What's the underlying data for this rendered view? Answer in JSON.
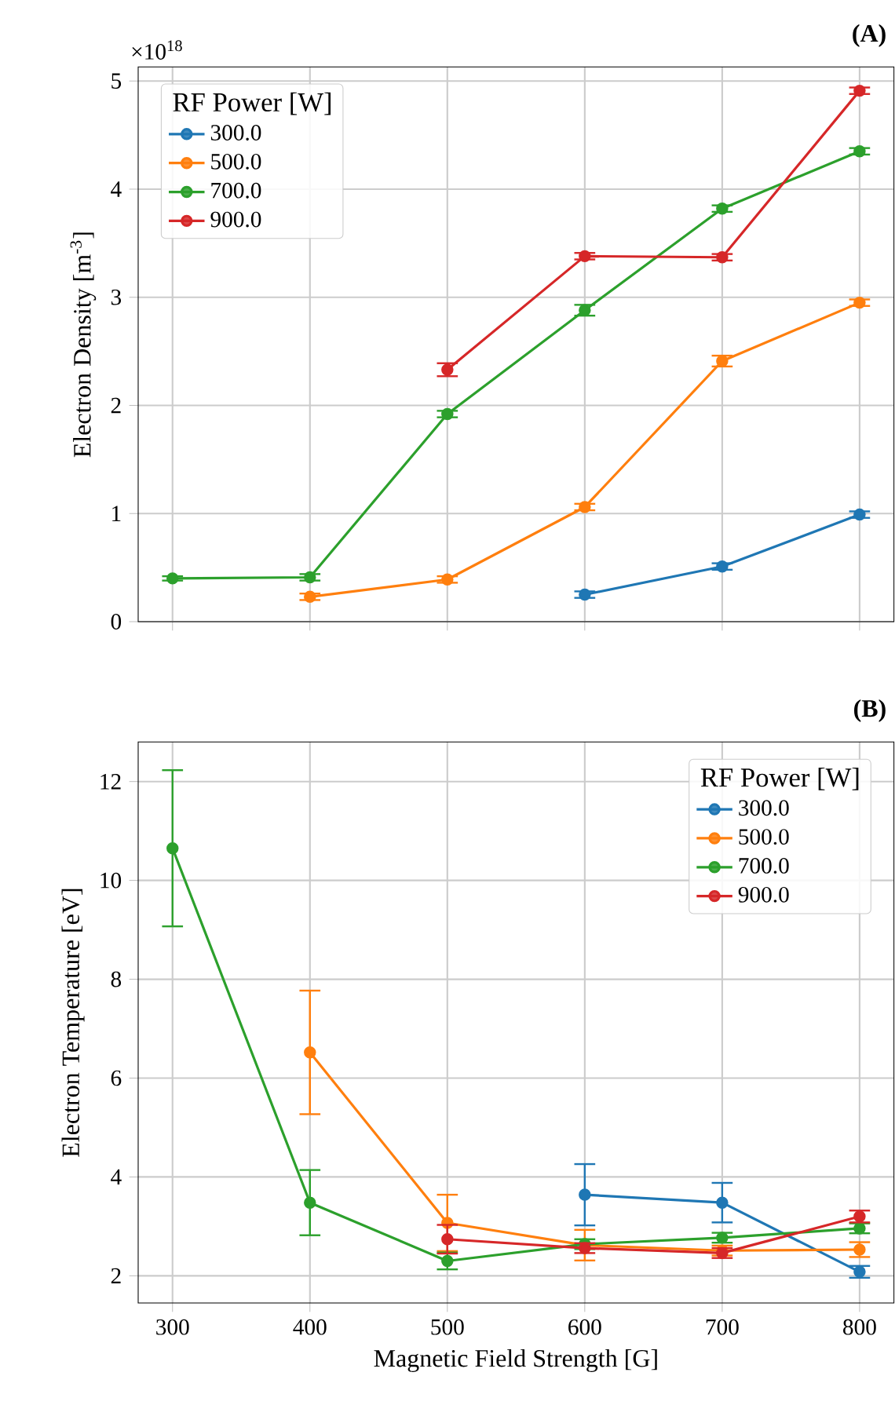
{
  "chart_data": [
    {
      "type": "line",
      "title": "(A)",
      "ylabel": "Electron Density [m$^{-3}$]",
      "annotations": [
        "×10$^{18}$"
      ],
      "legend_title": "RF Power [W]",
      "legend": "top left",
      "grid": true,
      "marker": "circle",
      "tick_labels": "y",
      "xlim": [
        275,
        825
      ],
      "xticks": [
        300,
        400,
        500,
        600,
        700,
        800
      ],
      "ylim": [
        0,
        5.13
      ],
      "yticks": [
        0,
        1,
        2,
        3,
        4,
        5
      ],
      "series": [
        {
          "name": "300.0",
          "color": "#1f77b4",
          "x": [
            600,
            700,
            800
          ],
          "values": [
            0.25,
            0.51,
            0.99
          ],
          "errors": [
            0.03,
            0.03,
            0.03
          ]
        },
        {
          "name": "500.0",
          "color": "#ff7f0e",
          "x": [
            400,
            500,
            600,
            700,
            800
          ],
          "values": [
            0.23,
            0.39,
            1.06,
            2.41,
            2.95
          ],
          "errors": [
            0.03,
            0.03,
            0.03,
            0.05,
            0.03
          ]
        },
        {
          "name": "700.0",
          "color": "#2ca02c",
          "x": [
            300,
            400,
            500,
            600,
            700,
            800
          ],
          "values": [
            0.4,
            0.41,
            1.92,
            2.88,
            3.82,
            4.35
          ],
          "errors": [
            0.02,
            0.03,
            0.03,
            0.05,
            0.03,
            0.03
          ]
        },
        {
          "name": "900.0",
          "color": "#d62728",
          "x": [
            500,
            600,
            700,
            800
          ],
          "values": [
            2.33,
            3.38,
            3.37,
            4.91
          ],
          "errors": [
            0.06,
            0.03,
            0.03,
            0.03
          ]
        }
      ]
    },
    {
      "type": "line",
      "title": "(B)",
      "xlabel": "Magnetic Field Strength [G]",
      "ylabel": "Electron Temperature [eV]",
      "legend_title": "RF Power [W]",
      "legend": "top right",
      "grid": true,
      "marker": "circle",
      "xlim": [
        275,
        825
      ],
      "xticks": [
        300,
        400,
        500,
        600,
        700,
        800
      ],
      "ylim": [
        1.45,
        12.8
      ],
      "yticks": [
        2,
        4,
        6,
        8,
        10,
        12
      ],
      "series": [
        {
          "name": "300.0",
          "color": "#1f77b4",
          "x": [
            600,
            700,
            800
          ],
          "values": [
            3.64,
            3.48,
            2.08
          ],
          "errors": [
            0.62,
            0.4,
            0.12
          ]
        },
        {
          "name": "500.0",
          "color": "#ff7f0e",
          "x": [
            400,
            500,
            600,
            700,
            800
          ],
          "values": [
            6.52,
            3.07,
            2.62,
            2.51,
            2.53
          ],
          "errors": [
            1.25,
            0.57,
            0.31,
            0.1,
            0.15
          ]
        },
        {
          "name": "700.0",
          "color": "#2ca02c",
          "x": [
            300,
            400,
            500,
            600,
            700,
            800
          ],
          "values": [
            10.65,
            3.48,
            2.3,
            2.64,
            2.77,
            2.96
          ],
          "errors": [
            1.58,
            0.66,
            0.17,
            0.1,
            0.1,
            0.1
          ]
        },
        {
          "name": "900.0",
          "color": "#d62728",
          "x": [
            500,
            600,
            700,
            800
          ],
          "values": [
            2.74,
            2.56,
            2.46,
            3.2
          ],
          "errors": [
            0.29,
            0.1,
            0.1,
            0.12
          ]
        }
      ]
    }
  ]
}
